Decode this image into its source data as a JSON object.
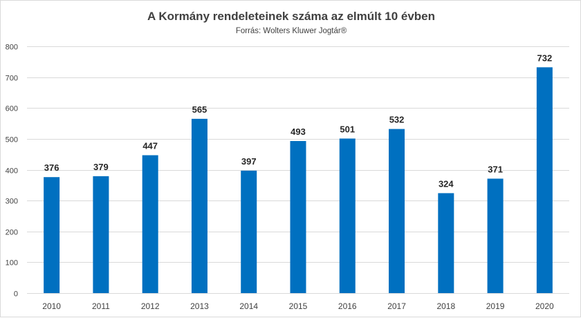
{
  "chart_data": {
    "type": "bar",
    "title": "A Kormány rendeleteinek száma az elmúlt 10 évben",
    "subtitle": "Forrás: Wolters Kluwer Jogtár®",
    "xlabel": "",
    "ylabel": "",
    "categories": [
      "2010",
      "2011",
      "2012",
      "2013",
      "2014",
      "2015",
      "2016",
      "2017",
      "2018",
      "2019",
      "2020"
    ],
    "values": [
      376,
      379,
      447,
      565,
      397,
      493,
      501,
      532,
      324,
      371,
      732
    ],
    "data_labels": [
      "376",
      "379",
      "447",
      "565",
      "397",
      "493",
      "501",
      "532",
      "324",
      "371",
      "732"
    ],
    "ylim": [
      0,
      800
    ],
    "yticks": [
      0,
      100,
      200,
      300,
      400,
      500,
      600,
      700,
      800
    ],
    "ytick_labels": [
      "0",
      "100",
      "200",
      "300",
      "400",
      "500",
      "600",
      "700",
      "800"
    ],
    "grid": true,
    "legend": "none",
    "bar_color": "#0070C0"
  }
}
